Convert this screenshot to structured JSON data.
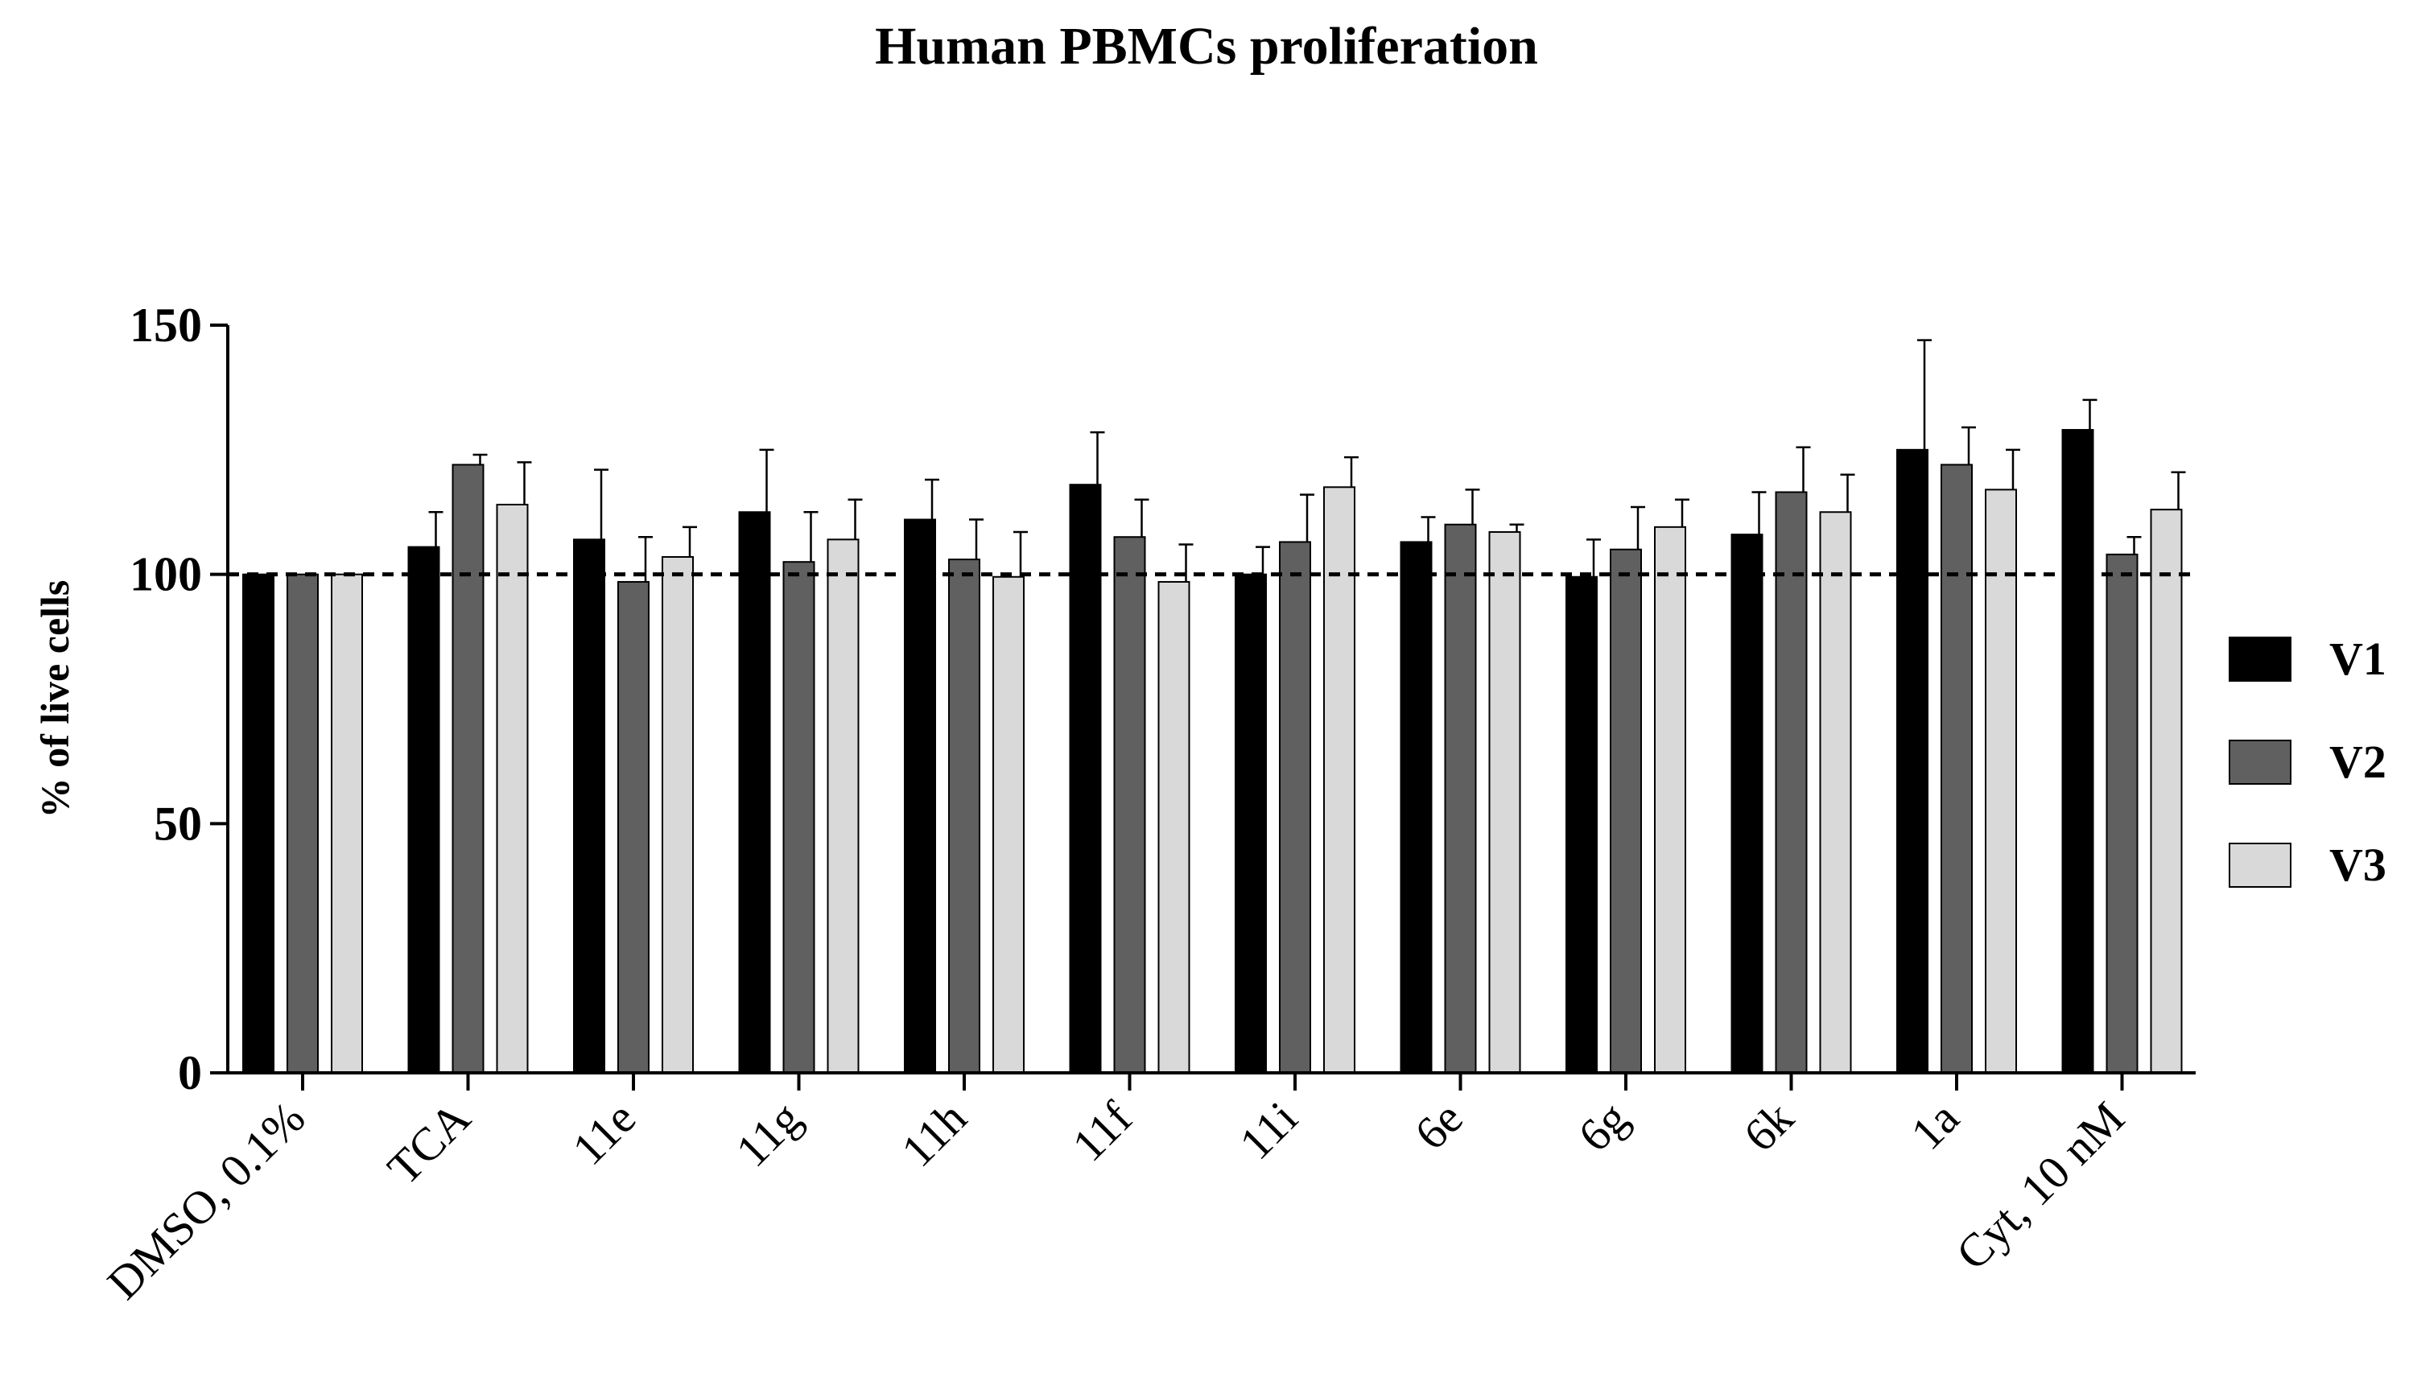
{
  "chart_data": {
    "type": "bar",
    "title": "Human PBMCs proliferation",
    "xlabel": "",
    "ylabel": "% of live cells",
    "ylim": [
      0,
      150
    ],
    "yticks": [
      0,
      50,
      100,
      150
    ],
    "reference_line": 100,
    "grid": false,
    "legend_position": "right",
    "categories": [
      "DMSO, 0.1%",
      "TCA",
      "11e",
      "11g",
      "11h",
      "11f",
      "11i",
      "6e",
      "6g",
      "6k",
      "1a",
      "Cyt, 10 nM"
    ],
    "series": [
      {
        "name": "V1",
        "color": "#000000",
        "values": [
          100,
          105.5,
          107,
          112.5,
          111,
          118,
          100,
          106.5,
          99.5,
          108,
          125,
          129
        ],
        "errors": [
          0,
          7,
          14,
          12.5,
          8,
          10.5,
          5.5,
          5,
          7.5,
          8.5,
          22,
          6
        ]
      },
      {
        "name": "V2",
        "color": "#606060",
        "values": [
          100,
          122,
          98.5,
          102.5,
          103,
          107.5,
          106.5,
          110,
          105,
          116.5,
          122,
          104
        ],
        "errors": [
          0,
          2,
          9,
          10,
          8,
          7.5,
          9.5,
          7,
          8.5,
          9,
          7.5,
          3.5
        ]
      },
      {
        "name": "V3",
        "color": "#d9d9d9",
        "values": [
          100,
          114,
          103.5,
          107,
          99.5,
          98.5,
          117.5,
          108.5,
          109.5,
          112.5,
          117,
          113
        ],
        "errors": [
          0,
          8.5,
          6,
          8,
          9,
          7.5,
          6,
          1.5,
          5.5,
          7.5,
          8,
          7.5
        ]
      }
    ]
  }
}
